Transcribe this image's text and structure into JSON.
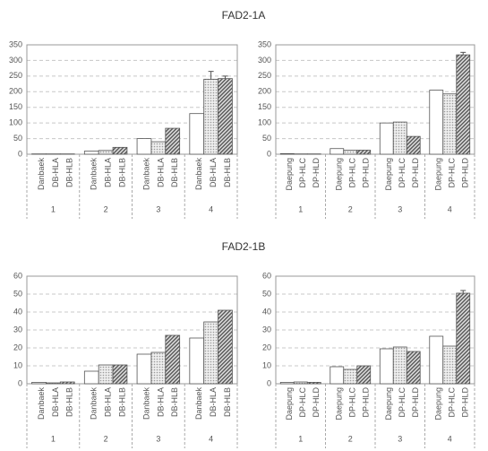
{
  "chart_data": [
    {
      "type": "bar",
      "title": "FAD2-1A",
      "categories": [
        "1",
        "2",
        "3",
        "4"
      ],
      "ylim": [
        0,
        350
      ],
      "yticks": [
        0,
        50,
        100,
        150,
        200,
        250,
        300,
        350
      ],
      "grid": true,
      "series": [
        {
          "name": "Danbaek",
          "color": "#ffffff",
          "pattern": "solid",
          "values": [
            1,
            10,
            50,
            130
          ],
          "errors": [
            null,
            null,
            null,
            null
          ]
        },
        {
          "name": "DB-HLA",
          "color": "#9a9a9a",
          "pattern": "dots",
          "values": [
            1,
            12,
            40,
            240
          ],
          "errors": [
            null,
            null,
            null,
            25
          ]
        },
        {
          "name": "DB-HLB",
          "color": "#555555",
          "pattern": "hatch",
          "values": [
            1,
            22,
            83,
            242
          ],
          "errors": [
            null,
            null,
            null,
            8
          ]
        }
      ]
    },
    {
      "type": "bar",
      "categories": [
        "1",
        "2",
        "3",
        "4"
      ],
      "ylim": [
        0,
        350
      ],
      "yticks": [
        0,
        50,
        100,
        150,
        200,
        250,
        300,
        350
      ],
      "grid": true,
      "series": [
        {
          "name": "Daepung",
          "color": "#ffffff",
          "pattern": "solid",
          "values": [
            2,
            18,
            100,
            205
          ],
          "errors": [
            null,
            null,
            null,
            null
          ]
        },
        {
          "name": "DP-HLC",
          "color": "#9a9a9a",
          "pattern": "dots",
          "values": [
            1,
            13,
            103,
            193
          ],
          "errors": [
            null,
            null,
            null,
            null
          ]
        },
        {
          "name": "DP-HLD",
          "color": "#555555",
          "pattern": "hatch",
          "values": [
            1,
            13,
            57,
            318
          ],
          "errors": [
            null,
            null,
            null,
            8
          ]
        }
      ]
    },
    {
      "type": "bar",
      "title": "FAD2-1B",
      "categories": [
        "1",
        "2",
        "3",
        "4"
      ],
      "ylim": [
        0,
        60
      ],
      "yticks": [
        0,
        10,
        20,
        30,
        40,
        50,
        60
      ],
      "grid": true,
      "series": [
        {
          "name": "Danbaek",
          "color": "#ffffff",
          "pattern": "solid",
          "values": [
            0.8,
            7,
            16.5,
            25.5
          ],
          "errors": [
            null,
            null,
            null,
            null
          ]
        },
        {
          "name": "DB-HLA",
          "color": "#9a9a9a",
          "pattern": "dots",
          "values": [
            0.5,
            10.5,
            17.5,
            34.5
          ],
          "errors": [
            null,
            null,
            null,
            null
          ]
        },
        {
          "name": "DB-HLB",
          "color": "#555555",
          "pattern": "hatch",
          "values": [
            1,
            10.5,
            27,
            41
          ],
          "errors": [
            null,
            null,
            null,
            null
          ]
        }
      ]
    },
    {
      "type": "bar",
      "categories": [
        "1",
        "2",
        "3",
        "4"
      ],
      "ylim": [
        0,
        60
      ],
      "yticks": [
        0,
        10,
        20,
        30,
        40,
        50,
        60
      ],
      "grid": true,
      "series": [
        {
          "name": "Daepung",
          "color": "#ffffff",
          "pattern": "solid",
          "values": [
            0.8,
            9.5,
            19.5,
            26.5
          ],
          "errors": [
            null,
            null,
            null,
            null
          ]
        },
        {
          "name": "DP-HLC",
          "color": "#9a9a9a",
          "pattern": "dots",
          "values": [
            1,
            8,
            20.5,
            21
          ],
          "errors": [
            null,
            null,
            null,
            null
          ]
        },
        {
          "name": "DP-HLD",
          "color": "#555555",
          "pattern": "hatch",
          "values": [
            0.8,
            10,
            18,
            50.5
          ],
          "errors": [
            null,
            null,
            null,
            1.5
          ]
        }
      ]
    }
  ]
}
